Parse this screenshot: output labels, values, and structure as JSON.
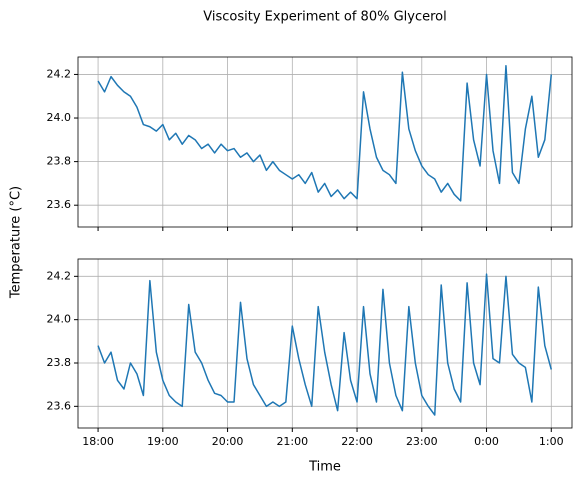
{
  "title": "Viscosity Experiment of 80% Glycerol",
  "ylabel": "Temperature (°C)",
  "xlabel": "Time",
  "chart_data": [
    {
      "type": "line",
      "color": "#1f77b4",
      "grid": true,
      "x": [
        18.0,
        18.1,
        18.2,
        18.3,
        18.4,
        18.5,
        18.6,
        18.7,
        18.8,
        18.9,
        19.0,
        19.1,
        19.2,
        19.3,
        19.4,
        19.5,
        19.6,
        19.7,
        19.8,
        19.9,
        20.0,
        20.1,
        20.2,
        20.3,
        20.4,
        20.5,
        20.6,
        20.7,
        20.8,
        20.9,
        21.0,
        21.1,
        21.2,
        21.3,
        21.4,
        21.5,
        21.6,
        21.7,
        21.8,
        21.9,
        22.0,
        22.1,
        22.2,
        22.3,
        22.4,
        22.5,
        22.6,
        22.7,
        22.8,
        22.9,
        23.0,
        23.1,
        23.2,
        23.3,
        23.4,
        23.5,
        23.6,
        23.7,
        23.8,
        23.9,
        24.0,
        24.1,
        24.2,
        24.3,
        24.4,
        24.5,
        24.6,
        24.7,
        24.8,
        24.9,
        25.0
      ],
      "values": [
        24.17,
        24.12,
        24.19,
        24.15,
        24.12,
        24.1,
        24.05,
        23.97,
        23.96,
        23.94,
        23.97,
        23.9,
        23.93,
        23.88,
        23.92,
        23.9,
        23.86,
        23.88,
        23.84,
        23.88,
        23.85,
        23.86,
        23.82,
        23.84,
        23.8,
        23.83,
        23.76,
        23.8,
        23.76,
        23.74,
        23.72,
        23.74,
        23.7,
        23.75,
        23.66,
        23.7,
        23.64,
        23.67,
        23.63,
        23.66,
        23.63,
        24.12,
        23.95,
        23.82,
        23.76,
        23.74,
        23.7,
        24.21,
        23.95,
        23.85,
        23.78,
        23.74,
        23.72,
        23.66,
        23.7,
        23.65,
        23.62,
        24.16,
        23.9,
        23.78,
        24.2,
        23.85,
        23.7,
        24.24,
        23.75,
        23.7,
        23.95,
        24.1,
        23.82,
        23.9,
        24.2
      ],
      "xlim": [
        17.69,
        25.32
      ],
      "xticks": [
        18,
        19,
        20,
        21,
        22,
        23,
        24,
        25
      ],
      "ylim": [
        23.5,
        24.28
      ],
      "yticks": [
        23.6,
        23.8,
        {
          "value": 24.0,
          "label": "24.0"
        },
        24.2
      ]
    },
    {
      "type": "line",
      "color": "#1f77b4",
      "grid": true,
      "x": [
        18.0,
        18.1,
        18.2,
        18.3,
        18.4,
        18.5,
        18.6,
        18.7,
        18.8,
        18.9,
        19.0,
        19.1,
        19.2,
        19.3,
        19.4,
        19.5,
        19.6,
        19.7,
        19.8,
        19.9,
        20.0,
        20.1,
        20.2,
        20.3,
        20.4,
        20.5,
        20.6,
        20.7,
        20.8,
        20.9,
        21.0,
        21.1,
        21.2,
        21.3,
        21.4,
        21.5,
        21.6,
        21.7,
        21.8,
        21.9,
        22.0,
        22.1,
        22.2,
        22.3,
        22.4,
        22.5,
        22.6,
        22.7,
        22.8,
        22.9,
        23.0,
        23.1,
        23.2,
        23.3,
        23.4,
        23.5,
        23.6,
        23.7,
        23.8,
        23.9,
        24.0,
        24.1,
        24.2,
        24.3,
        24.4,
        24.5,
        24.6,
        24.7,
        24.8,
        24.9,
        25.0
      ],
      "values": [
        23.88,
        23.8,
        23.85,
        23.72,
        23.68,
        23.8,
        23.75,
        23.65,
        24.18,
        23.85,
        23.72,
        23.65,
        23.62,
        23.6,
        24.07,
        23.85,
        23.8,
        23.72,
        23.66,
        23.65,
        23.62,
        23.62,
        24.08,
        23.82,
        23.7,
        23.65,
        23.6,
        23.62,
        23.6,
        23.62,
        23.97,
        23.82,
        23.7,
        23.6,
        24.06,
        23.85,
        23.7,
        23.58,
        23.94,
        23.72,
        23.62,
        24.06,
        23.75,
        23.62,
        24.14,
        23.8,
        23.65,
        23.58,
        24.06,
        23.8,
        23.65,
        23.6,
        23.56,
        24.16,
        23.8,
        23.68,
        23.62,
        24.17,
        23.8,
        23.7,
        24.21,
        23.82,
        23.8,
        24.2,
        23.84,
        23.8,
        23.78,
        23.62,
        24.15,
        23.88,
        23.77
      ],
      "xlim": [
        17.69,
        25.32
      ],
      "xticks": [
        {
          "value": 18,
          "label": "18:00"
        },
        {
          "value": 19,
          "label": "19:00"
        },
        {
          "value": 20,
          "label": "20:00"
        },
        {
          "value": 21,
          "label": "21:00"
        },
        {
          "value": 22,
          "label": "22:00"
        },
        {
          "value": 23,
          "label": "23:00"
        },
        {
          "value": 24,
          "label": "0:00"
        },
        {
          "value": 25,
          "label": "1:00"
        }
      ],
      "ylim": [
        23.5,
        24.28
      ],
      "yticks": [
        23.6,
        23.8,
        {
          "value": 24.0,
          "label": "24.0"
        },
        24.2
      ]
    }
  ]
}
